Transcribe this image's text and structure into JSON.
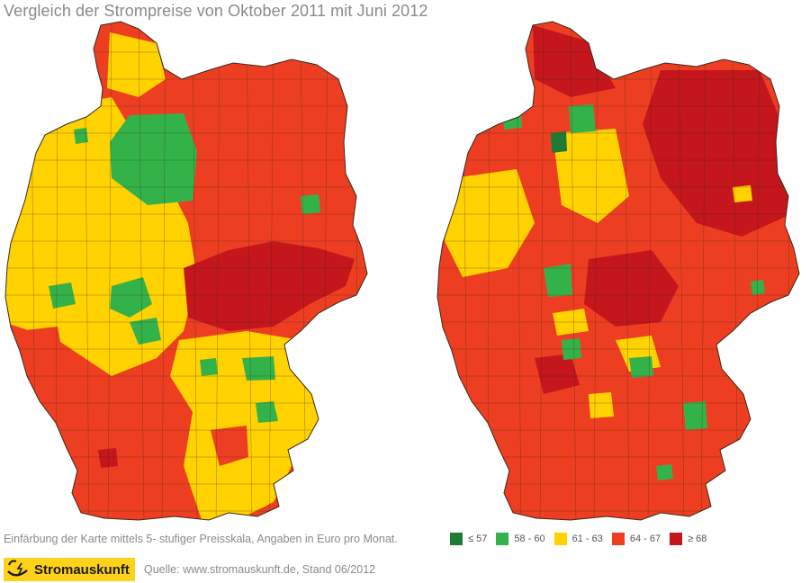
{
  "title": "Vergleich der Strompreise von Oktober 2011 mit Juni 2012",
  "caption": "Einfärbung der Karte mittels 5- stufiger Preisskala, Angaben in Euro pro Monat.",
  "source": "Quelle: www.stromauskunft.de, Stand 06/2012",
  "brand": "Stromauskunft",
  "legend": [
    {
      "label": "≤ 57",
      "color": "#1f7a34"
    },
    {
      "label": "58 - 60",
      "color": "#34b24a"
    },
    {
      "label": "61 - 63",
      "color": "#ffd200"
    },
    {
      "label": "64 - 67",
      "color": "#ee3e22"
    },
    {
      "label": "≥ 68",
      "color": "#c4161c"
    }
  ],
  "maps": [
    {
      "name": "Oktober 2011"
    },
    {
      "name": "Juni 2012"
    }
  ]
}
